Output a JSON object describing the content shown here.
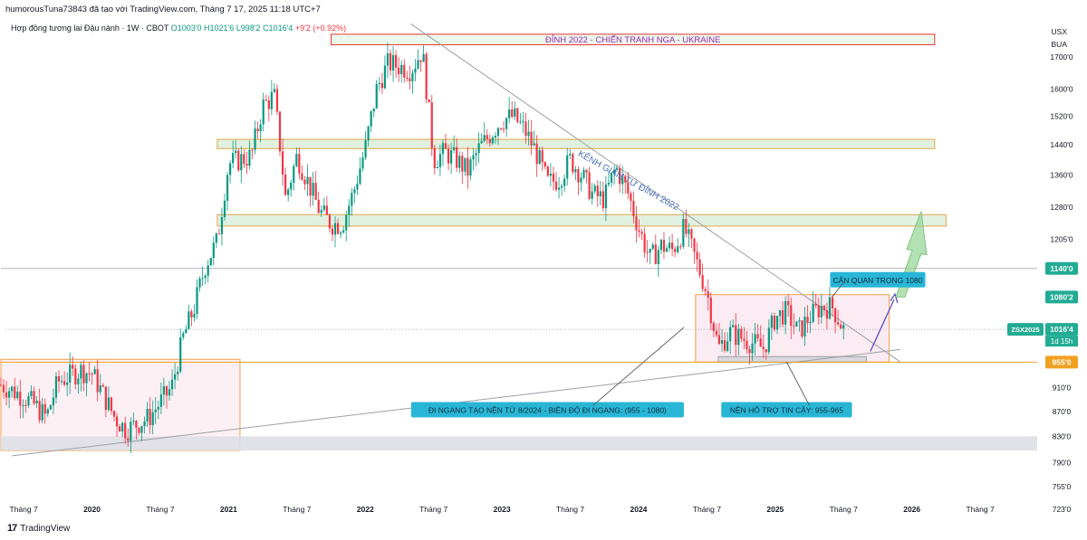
{
  "header": {
    "attribution": "humorousTuna73843 đã tạo với TradingView.com, Tháng 7 17, 2025 11:18 UTC+7",
    "symbol_line": "Hợp đồng tương lai Đậu nành · 1W · CBOT",
    "open": "O1003'0",
    "high": "H1021'6",
    "low": "L998'2",
    "close": "C1016'4",
    "change": "+9'2 (+0.92%)",
    "currency": "USX",
    "unit": "BUA"
  },
  "footer": {
    "brand": "TradingView",
    "logo": "tradingview-logo"
  },
  "colors": {
    "up": "#089981",
    "down": "#f23645",
    "green_zone": "#c8e6c9",
    "orange_border": "#f0a04b",
    "red_zone_border": "#e53935",
    "label_bg": "#29b6d6",
    "price_tag": "#22ab94",
    "purple_text": "#9c27b0"
  },
  "chart_data": {
    "type": "candlestick",
    "ylim": [
      700,
      1830
    ],
    "y_ticks": [
      "1700'0",
      "1600'0",
      "1520'0",
      "1440'0",
      "1360'0",
      "1280'0",
      "1205'0",
      "910'0",
      "870'0",
      "830'0",
      "790'0",
      "755'0",
      "723'0"
    ],
    "x_ticks": [
      "Tháng 7",
      "2020",
      "Tháng 7",
      "2021",
      "Tháng 7",
      "2022",
      "Tháng 7",
      "2023",
      "Tháng 7",
      "2024",
      "Tháng 7",
      "2025",
      "Tháng 7",
      "2026",
      "Tháng 7"
    ],
    "price_tags": [
      {
        "label": "1140'0",
        "value": 1140,
        "color": "#22ab94"
      },
      {
        "label": "1080'2",
        "value": 1080,
        "color": "#22ab94"
      },
      {
        "label": "1016'4",
        "value": 1016,
        "color": "#22ab94",
        "symbol": "ZSX2025",
        "countdown": "1d 15h"
      },
      {
        "label": "955'0",
        "value": 955,
        "color": "#f0a020"
      }
    ],
    "price_path": [
      {
        "t": "2019-05",
        "v": 915
      },
      {
        "t": "2019-07",
        "v": 895
      },
      {
        "t": "2019-08",
        "v": 880
      },
      {
        "t": "2019-09",
        "v": 860
      },
      {
        "t": "2019-10",
        "v": 920
      },
      {
        "t": "2019-12",
        "v": 940
      },
      {
        "t": "2020-01",
        "v": 935
      },
      {
        "t": "2020-03",
        "v": 860
      },
      {
        "t": "2020-04",
        "v": 840
      },
      {
        "t": "2020-06",
        "v": 860
      },
      {
        "t": "2020-08",
        "v": 910
      },
      {
        "t": "2020-09",
        "v": 1000
      },
      {
        "t": "2020-10",
        "v": 1060
      },
      {
        "t": "2020-11",
        "v": 1150
      },
      {
        "t": "2020-12",
        "v": 1200
      },
      {
        "t": "2021-01",
        "v": 1390
      },
      {
        "t": "2021-03",
        "v": 1410
      },
      {
        "t": "2021-04",
        "v": 1550
      },
      {
        "t": "2021-05",
        "v": 1580
      },
      {
        "t": "2021-06",
        "v": 1300
      },
      {
        "t": "2021-07",
        "v": 1410
      },
      {
        "t": "2021-08",
        "v": 1340
      },
      {
        "t": "2021-09",
        "v": 1270
      },
      {
        "t": "2021-10",
        "v": 1240
      },
      {
        "t": "2021-11",
        "v": 1240
      },
      {
        "t": "2021-12",
        "v": 1320
      },
      {
        "t": "2022-01",
        "v": 1430
      },
      {
        "t": "2022-02",
        "v": 1600
      },
      {
        "t": "2022-03",
        "v": 1680
      },
      {
        "t": "2022-05",
        "v": 1660
      },
      {
        "t": "2022-06",
        "v": 1720
      },
      {
        "t": "2022-07",
        "v": 1400
      },
      {
        "t": "2022-08",
        "v": 1420
      },
      {
        "t": "2022-09",
        "v": 1400
      },
      {
        "t": "2022-10",
        "v": 1370
      },
      {
        "t": "2022-11",
        "v": 1430
      },
      {
        "t": "2022-12",
        "v": 1470
      },
      {
        "t": "2023-01",
        "v": 1510
      },
      {
        "t": "2023-02",
        "v": 1520
      },
      {
        "t": "2023-03",
        "v": 1480
      },
      {
        "t": "2023-04",
        "v": 1420
      },
      {
        "t": "2023-05",
        "v": 1340
      },
      {
        "t": "2023-06",
        "v": 1350
      },
      {
        "t": "2023-07",
        "v": 1400
      },
      {
        "t": "2023-08",
        "v": 1360
      },
      {
        "t": "2023-09",
        "v": 1310
      },
      {
        "t": "2023-10",
        "v": 1300
      },
      {
        "t": "2023-11",
        "v": 1380
      },
      {
        "t": "2023-12",
        "v": 1320
      },
      {
        "t": "2024-01",
        "v": 1230
      },
      {
        "t": "2024-02",
        "v": 1160
      },
      {
        "t": "2024-03",
        "v": 1190
      },
      {
        "t": "2024-04",
        "v": 1180
      },
      {
        "t": "2024-05",
        "v": 1230
      },
      {
        "t": "2024-06",
        "v": 1160
      },
      {
        "t": "2024-07",
        "v": 1090
      },
      {
        "t": "2024-08",
        "v": 980
      },
      {
        "t": "2024-09",
        "v": 1010
      },
      {
        "t": "2024-10",
        "v": 1000
      },
      {
        "t": "2024-11",
        "v": 990
      },
      {
        "t": "2024-12",
        "v": 980
      },
      {
        "t": "2025-01",
        "v": 1040
      },
      {
        "t": "2025-02",
        "v": 1050
      },
      {
        "t": "2025-03",
        "v": 1010
      },
      {
        "t": "2025-04",
        "v": 1040
      },
      {
        "t": "2025-05",
        "v": 1060
      },
      {
        "t": "2025-06",
        "v": 1060
      },
      {
        "t": "2025-07",
        "v": 1016
      }
    ],
    "zones": [
      {
        "name": "top-2022-zone",
        "label": "ĐỈNH 2022 - CHIẾN TRANH NGA - UKRAINE",
        "from_t": "2021-10",
        "to_t": "2026-03",
        "low": 1740,
        "high": 1775,
        "style": "red-outline"
      },
      {
        "name": "resistance-zone-1440",
        "from_t": "2020-12",
        "to_t": "2026-03",
        "low": 1430,
        "high": 1455,
        "style": "green"
      },
      {
        "name": "resistance-zone-1280",
        "from_t": "2020-12",
        "to_t": "2026-04",
        "low": 1235,
        "high": 1262,
        "style": "green"
      },
      {
        "name": "accumulation-zone-2019",
        "from_t": "2019-05",
        "to_t": "2021-02",
        "low": 808,
        "high": 960,
        "style": "pink"
      },
      {
        "name": "grey-support-band",
        "from_t": "2019-05",
        "to_t": "2026-12",
        "low": 808,
        "high": 830,
        "style": "grey"
      },
      {
        "name": "sideway-zone-2024",
        "from_t": "2024-06",
        "to_t": "2025-11",
        "low": 955,
        "high": 1085,
        "style": "orange-pink"
      },
      {
        "name": "support-base-zone",
        "from_t": "2024-08",
        "to_t": "2025-09",
        "low": 955,
        "high": 965,
        "style": "grey-small"
      }
    ],
    "trendlines": [
      {
        "name": "downtrend-channel-line",
        "from": {
          "t": "2022-05",
          "v": 1810
        },
        "to": {
          "t": "2025-12",
          "v": 955
        }
      },
      {
        "name": "long-term-uptrend-line",
        "from": {
          "t": "2019-06",
          "v": 800
        },
        "to": {
          "t": "2025-12",
          "v": 978
        }
      },
      {
        "name": "horizontal-1140",
        "from": {
          "t": "2019-05",
          "v": 1140
        },
        "to": {
          "t": "2026-12",
          "v": 1140
        }
      },
      {
        "name": "horizontal-955",
        "from": {
          "t": "2019-05",
          "v": 955
        },
        "to": {
          "t": "2026-12",
          "v": 955
        }
      }
    ],
    "annotations": [
      {
        "name": "downtrend-label",
        "text": "KÊNH GIẢM TỪ ĐỈNH 2022",
        "t": "2023-12",
        "v": 1340
      },
      {
        "name": "key-level-label",
        "text": "CẢN QUAN TRỌNG 1080",
        "t": "2025-10",
        "v": 1115,
        "boxed": true
      },
      {
        "name": "sideway-label",
        "text": "ĐI NGANG TẠO NỀN TỪ 8/2024 - BIÊN ĐỘ ĐI NGANG: (955 - 1080)",
        "t": "2023-05",
        "v": 872,
        "boxed": true
      },
      {
        "name": "support-label",
        "text": "NỀN HỖ TRỢ TIN CẬY: 955-965",
        "t": "2025-02",
        "v": 872,
        "boxed": true
      }
    ]
  }
}
